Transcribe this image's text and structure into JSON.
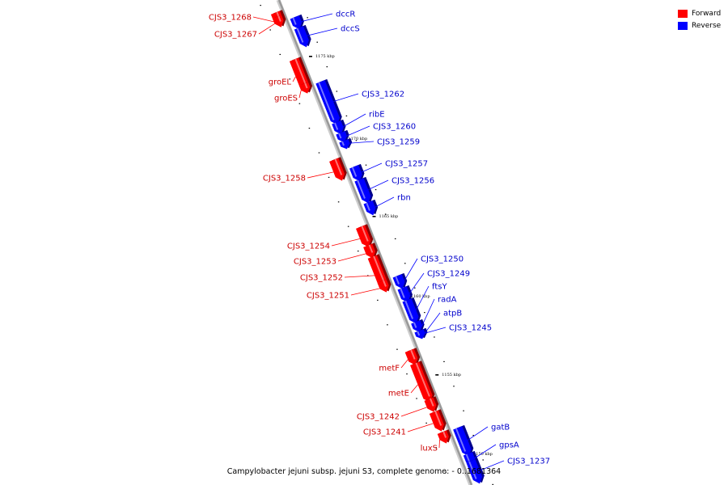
{
  "caption": "Campylobacter jejuni subsp. jejuni S3, complete genome: - 0..1681364",
  "legend": [
    {
      "label": "Forward",
      "color": "#ff0000"
    },
    {
      "label": "Reverse",
      "color": "#0000ff"
    }
  ],
  "colors": {
    "forward": "#ff0000",
    "reverse": "#0000ff",
    "forward_label": "#cc0000",
    "reverse_label": "#0000cc",
    "backbone": "#999999"
  },
  "ticks": [
    "1175 kbp",
    "1170 kbp",
    "1165 kbp",
    "1160 kbp",
    "1155 kbp",
    "1150 kbp"
  ],
  "genes": [
    {
      "name": "CJS3_1268",
      "strand": "forward"
    },
    {
      "name": "CJS3_1267",
      "strand": "forward"
    },
    {
      "name": "dccR",
      "strand": "reverse"
    },
    {
      "name": "dccS",
      "strand": "reverse"
    },
    {
      "name": "groEL",
      "strand": "forward"
    },
    {
      "name": "groES",
      "strand": "forward"
    },
    {
      "name": "CJS3_1262",
      "strand": "reverse"
    },
    {
      "name": "ribE",
      "strand": "reverse"
    },
    {
      "name": "CJS3_1260",
      "strand": "reverse"
    },
    {
      "name": "CJS3_1259",
      "strand": "reverse"
    },
    {
      "name": "CJS3_1258",
      "strand": "forward"
    },
    {
      "name": "CJS3_1257",
      "strand": "reverse"
    },
    {
      "name": "CJS3_1256",
      "strand": "reverse"
    },
    {
      "name": "rbn",
      "strand": "reverse"
    },
    {
      "name": "CJS3_1254",
      "strand": "forward"
    },
    {
      "name": "CJS3_1253",
      "strand": "forward"
    },
    {
      "name": "CJS3_1252",
      "strand": "forward"
    },
    {
      "name": "CJS3_1251",
      "strand": "forward"
    },
    {
      "name": "CJS3_1250",
      "strand": "reverse"
    },
    {
      "name": "CJS3_1249",
      "strand": "reverse"
    },
    {
      "name": "ftsY",
      "strand": "reverse"
    },
    {
      "name": "radA",
      "strand": "reverse"
    },
    {
      "name": "atpB",
      "strand": "reverse"
    },
    {
      "name": "CJS3_1245",
      "strand": "reverse"
    },
    {
      "name": "metF",
      "strand": "forward"
    },
    {
      "name": "metE",
      "strand": "forward"
    },
    {
      "name": "CJS3_1242",
      "strand": "forward"
    },
    {
      "name": "CJS3_1241",
      "strand": "forward"
    },
    {
      "name": "luxS",
      "strand": "forward"
    },
    {
      "name": "gatB",
      "strand": "reverse"
    },
    {
      "name": "gpsA",
      "strand": "reverse"
    },
    {
      "name": "CJS3_1237",
      "strand": "reverse"
    }
  ]
}
